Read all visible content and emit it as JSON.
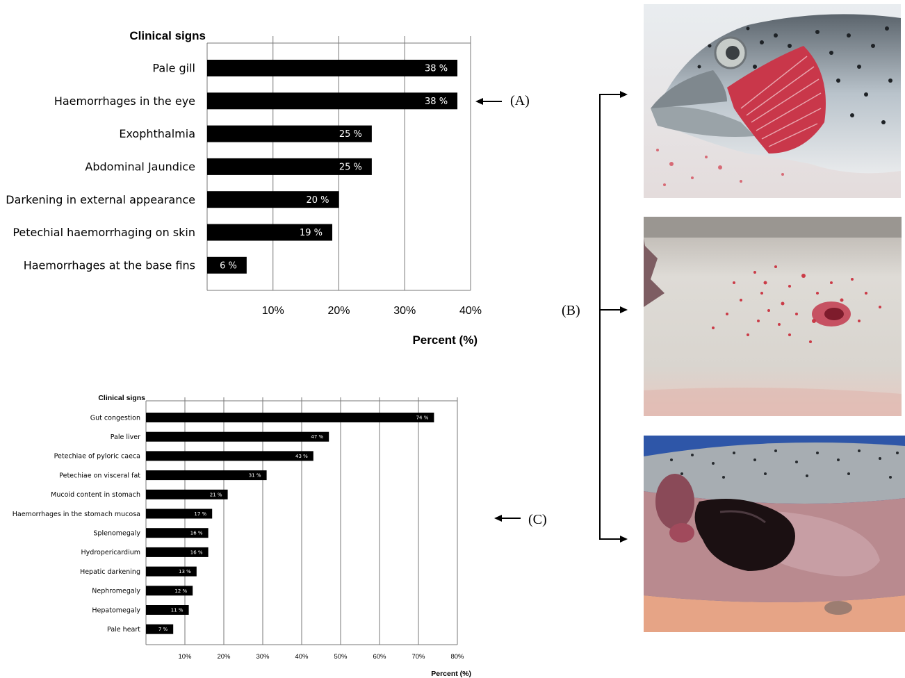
{
  "panels": {
    "a_label": "(A)",
    "b_label": "(B)",
    "c_label": "(C)"
  },
  "photos": [
    {
      "name": "fish-head-photo",
      "description_icon": "fish-head-pale-gill-image"
    },
    {
      "name": "fish-skin-photo",
      "description_icon": "fish-skin-petechiae-image"
    },
    {
      "name": "fish-viscera-photo",
      "description_icon": "fish-viscera-liver-image"
    }
  ],
  "colors": {
    "bar": "#000000",
    "grid": "#777777",
    "gill": "#c9374a",
    "skin": "#d8d4cf",
    "blood": "#c8202f",
    "liver": "#1b1012",
    "tray": "#2e56a8"
  },
  "chart_data": [
    {
      "type": "bar",
      "orientation": "horizontal",
      "title": "Clinical signs",
      "xlabel": "Percent (%)",
      "xlim": [
        0,
        40
      ],
      "xticks": [
        "10%",
        "20%",
        "30%",
        "40%"
      ],
      "grid": true,
      "categories": [
        "Pale gill",
        "Haemorrhages in the eye",
        "Exophthalmia",
        "Abdominal Jaundice",
        "Darkening in external appearance",
        "Petechial haemorrhaging on skin",
        "Haemorrhages at the base fins"
      ],
      "values": [
        38,
        38,
        25,
        25,
        20,
        19,
        6
      ],
      "value_labels": [
        "38 %",
        "38 %",
        "25 %",
        "25 %",
        "20 %",
        "19 %",
        "6 %"
      ]
    },
    {
      "type": "bar",
      "orientation": "horizontal",
      "title": "Clinical signs",
      "xlabel": "Percent (%)",
      "xlim": [
        0,
        80
      ],
      "xticks": [
        "10%",
        "20%",
        "30%",
        "40%",
        "50%",
        "60%",
        "70%",
        "80%"
      ],
      "grid": true,
      "categories": [
        "Gut congestion",
        "Pale liver",
        "Petechiae of pyloric caeca",
        "Petechiae on visceral fat",
        "Mucoid content in stomach",
        "Haemorrhages in the stomach mucosa",
        "Splenomegaly",
        "Hydropericardium",
        "Hepatic darkening",
        "Nephromegaly",
        "Hepatomegaly",
        "Pale heart"
      ],
      "values": [
        74,
        47,
        43,
        31,
        21,
        17,
        16,
        16,
        13,
        12,
        11,
        7
      ],
      "value_labels": [
        "74 %",
        "47 %",
        "43 %",
        "31 %",
        "21 %",
        "17 %",
        "16 %",
        "16 %",
        "13 %",
        "12 %",
        "11 %",
        "7 %"
      ]
    }
  ]
}
